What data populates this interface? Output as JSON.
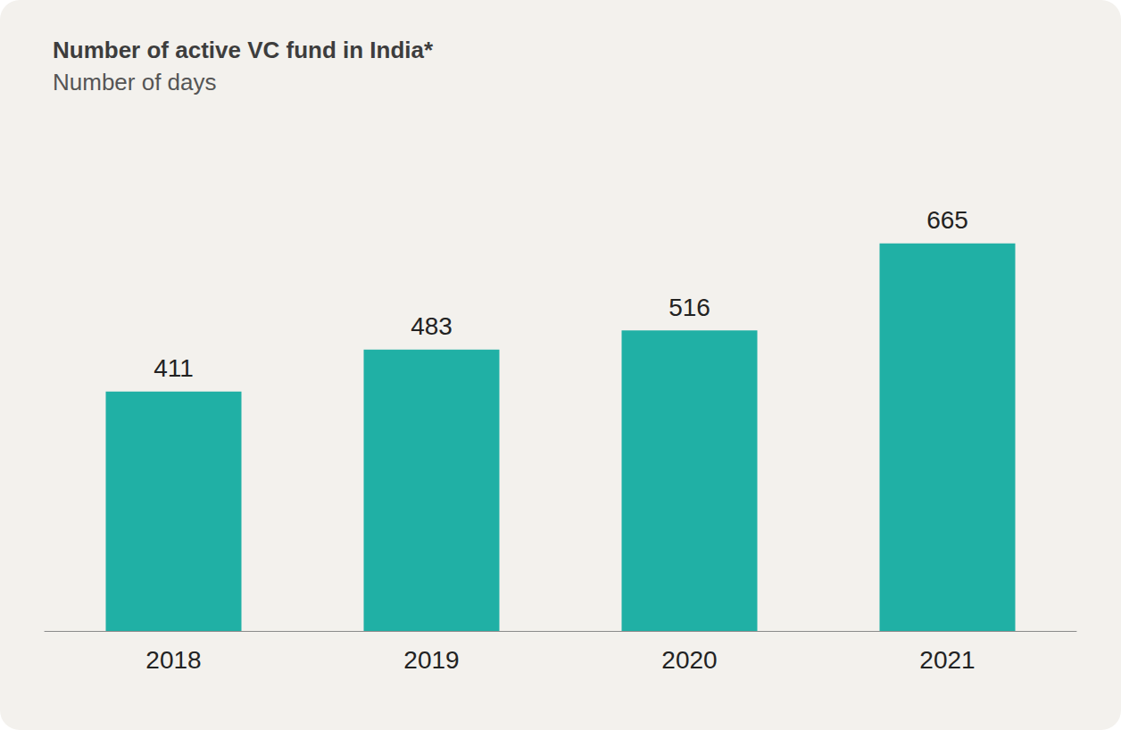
{
  "chart_data": {
    "type": "bar",
    "title": "Number of active VC fund in India*",
    "subtitle": "Number of days",
    "categories": [
      "2018",
      "2019",
      "2020",
      "2021"
    ],
    "values": [
      411,
      483,
      516,
      665
    ],
    "color": "#20b0a5",
    "ylim": [
      0,
      700
    ],
    "grid": false,
    "data_labels": true,
    "tick_labels": "x"
  }
}
